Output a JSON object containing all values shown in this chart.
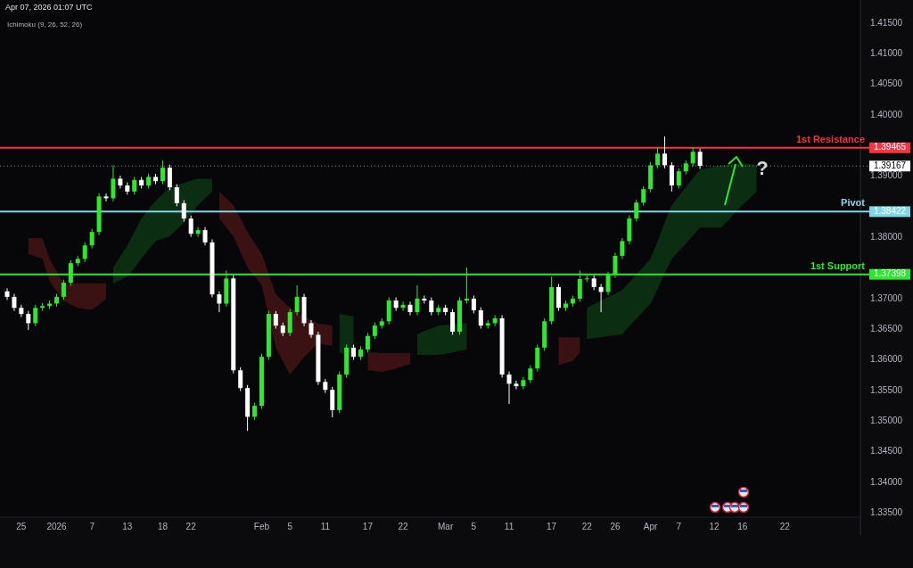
{
  "chart_data": {
    "type": "candlestick",
    "title": "Apr 07, 2026 01:07 UTC",
    "annotations": [
      "Ichimoku (9, 26, 52, 26)",
      "?",
      "1.39465",
      "1.39167",
      "1.38422",
      "1.37398"
    ],
    "categories": [
      null,
      null,
      "25",
      null,
      null,
      null,
      null,
      "2026",
      null,
      null,
      null,
      null,
      "7",
      null,
      null,
      null,
      null,
      "13",
      null,
      null,
      null,
      null,
      "18",
      null,
      null,
      null,
      "22",
      null,
      null,
      null,
      null,
      null,
      null,
      null,
      null,
      null,
      "Feb",
      null,
      null,
      null,
      "5",
      null,
      null,
      null,
      null,
      "11",
      null,
      null,
      null,
      null,
      null,
      "17",
      null,
      null,
      null,
      null,
      "22",
      null,
      null,
      null,
      null,
      null,
      "Mar",
      null,
      null,
      null,
      "5",
      null,
      null,
      null,
      null,
      "11",
      null,
      null,
      null,
      null,
      null,
      "17",
      null,
      null,
      null,
      null,
      "22",
      null,
      null,
      null,
      "26",
      null,
      null,
      null,
      null,
      "Apr",
      null,
      null,
      null,
      "7",
      null,
      null,
      null,
      null,
      "12",
      null,
      null,
      null,
      "16",
      null,
      null,
      null,
      null,
      null,
      "22",
      null,
      null,
      null,
      null,
      null,
      null,
      null,
      null,
      null,
      null
    ],
    "ylim": [
      1.3343,
      1.4188
    ],
    "yticks": [
      {
        "value": 1.415,
        "label": "1.41500"
      },
      {
        "value": 1.41,
        "label": "1.41000"
      },
      {
        "value": 1.405,
        "label": "1.40500"
      },
      {
        "value": 1.4,
        "label": "1.40000"
      },
      {
        "value": 1.39,
        "label": "1.39000"
      },
      {
        "value": 1.38,
        "label": "1.38000"
      },
      {
        "value": 1.37,
        "label": "1.37000"
      },
      {
        "value": 1.365,
        "label": "1.36500"
      },
      {
        "value": 1.36,
        "label": "1.36000"
      },
      {
        "value": 1.355,
        "label": "1.35500"
      },
      {
        "value": 1.35,
        "label": "1.35000"
      },
      {
        "value": 1.345,
        "label": "1.34500"
      },
      {
        "value": 1.34,
        "label": "1.34000"
      },
      {
        "value": 1.335,
        "label": "1.33500"
      }
    ],
    "ohlc": [
      [
        1.3712,
        1.3717,
        1.3698,
        1.3703
      ],
      [
        1.3703,
        1.3708,
        1.368,
        1.3685
      ],
      [
        1.3685,
        1.369,
        1.367,
        1.3675
      ],
      [
        1.3675,
        1.368,
        1.3649,
        1.366
      ],
      [
        1.366,
        1.369,
        1.3655,
        1.3685
      ],
      [
        1.3685,
        1.3693,
        1.368,
        1.3688
      ],
      [
        1.3688,
        1.3697,
        1.3683,
        1.3692
      ],
      [
        1.3692,
        1.3708,
        1.3687,
        1.3703
      ],
      [
        1.3703,
        1.3731,
        1.3698,
        1.3726
      ],
      [
        1.3726,
        1.3763,
        1.3721,
        1.3758
      ],
      [
        1.3758,
        1.377,
        1.3753,
        1.3765
      ],
      [
        1.3765,
        1.3792,
        1.376,
        1.3787
      ],
      [
        1.3787,
        1.3814,
        1.3782,
        1.3809
      ],
      [
        1.3809,
        1.3872,
        1.3804,
        1.3867
      ],
      [
        1.3867,
        1.3872,
        1.3859,
        1.3864
      ],
      [
        1.3864,
        1.3918,
        1.3859,
        1.3896
      ],
      [
        1.3896,
        1.3901,
        1.388,
        1.3885
      ],
      [
        1.3885,
        1.389,
        1.387,
        1.3875
      ],
      [
        1.3875,
        1.3899,
        1.387,
        1.3894
      ],
      [
        1.3894,
        1.3899,
        1.388,
        1.3885
      ],
      [
        1.3885,
        1.3904,
        1.388,
        1.3899
      ],
      [
        1.3899,
        1.3904,
        1.3887,
        1.3892
      ],
      [
        1.3892,
        1.3926,
        1.3887,
        1.3914
      ],
      [
        1.3914,
        1.3919,
        1.3877,
        1.3882
      ],
      [
        1.3882,
        1.3887,
        1.3851,
        1.3856
      ],
      [
        1.3856,
        1.3861,
        1.3826,
        1.3831
      ],
      [
        1.3831,
        1.3836,
        1.3801,
        1.3806
      ],
      [
        1.3806,
        1.3817,
        1.3801,
        1.3812
      ],
      [
        1.3812,
        1.3817,
        1.3787,
        1.3792
      ],
      [
        1.3792,
        1.3797,
        1.3702,
        1.3707
      ],
      [
        1.3707,
        1.3712,
        1.3678,
        1.3692
      ],
      [
        1.3692,
        1.3746,
        1.3687,
        1.3733
      ],
      [
        1.3733,
        1.3738,
        1.3578,
        1.3583
      ],
      [
        1.3583,
        1.3588,
        1.3549,
        1.3554
      ],
      [
        1.3554,
        1.3559,
        1.3484,
        1.3507
      ],
      [
        1.3507,
        1.353,
        1.3502,
        1.3525
      ],
      [
        1.3525,
        1.361,
        1.352,
        1.3605
      ],
      [
        1.3605,
        1.368,
        1.36,
        1.3675
      ],
      [
        1.3675,
        1.368,
        1.3651,
        1.3656
      ],
      [
        1.3656,
        1.3661,
        1.3639,
        1.3644
      ],
      [
        1.3644,
        1.3683,
        1.3639,
        1.3678
      ],
      [
        1.3678,
        1.3722,
        1.3673,
        1.3703
      ],
      [
        1.3703,
        1.3708,
        1.3655,
        1.366
      ],
      [
        1.366,
        1.3665,
        1.3636,
        1.3641
      ],
      [
        1.3641,
        1.3646,
        1.3559,
        1.3564
      ],
      [
        1.3564,
        1.3569,
        1.3546,
        1.3551
      ],
      [
        1.3551,
        1.3556,
        1.3506,
        1.3518
      ],
      [
        1.3518,
        1.3581,
        1.3513,
        1.3576
      ],
      [
        1.3576,
        1.3625,
        1.3571,
        1.362
      ],
      [
        1.362,
        1.3625,
        1.36,
        1.3605
      ],
      [
        1.3605,
        1.3622,
        1.36,
        1.3617
      ],
      [
        1.3617,
        1.3644,
        1.3612,
        1.3639
      ],
      [
        1.3639,
        1.3661,
        1.3634,
        1.3656
      ],
      [
        1.3656,
        1.3668,
        1.3651,
        1.3663
      ],
      [
        1.3663,
        1.3702,
        1.3658,
        1.3697
      ],
      [
        1.3697,
        1.3702,
        1.368,
        1.3685
      ],
      [
        1.3685,
        1.3695,
        1.368,
        1.369
      ],
      [
        1.369,
        1.3695,
        1.3673,
        1.3678
      ],
      [
        1.3678,
        1.3722,
        1.3673,
        1.37
      ],
      [
        1.37,
        1.3705,
        1.3692,
        1.3697
      ],
      [
        1.3697,
        1.3702,
        1.3673,
        1.3678
      ],
      [
        1.3678,
        1.369,
        1.3673,
        1.3685
      ],
      [
        1.3685,
        1.369,
        1.3673,
        1.3678
      ],
      [
        1.3678,
        1.3683,
        1.3641,
        1.3646
      ],
      [
        1.3646,
        1.3702,
        1.3641,
        1.3697
      ],
      [
        1.3697,
        1.3751,
        1.3692,
        1.37
      ],
      [
        1.37,
        1.3705,
        1.3676,
        1.3681
      ],
      [
        1.3681,
        1.3686,
        1.3651,
        1.3656
      ],
      [
        1.3656,
        1.3665,
        1.3651,
        1.366
      ],
      [
        1.366,
        1.3673,
        1.3655,
        1.3668
      ],
      [
        1.3668,
        1.3673,
        1.3571,
        1.3576
      ],
      [
        1.3576,
        1.3581,
        1.3528,
        1.3561
      ],
      [
        1.3561,
        1.3566,
        1.3552,
        1.3557
      ],
      [
        1.3557,
        1.3572,
        1.3552,
        1.3567
      ],
      [
        1.3567,
        1.3591,
        1.3562,
        1.3586
      ],
      [
        1.3586,
        1.3625,
        1.3581,
        1.362
      ],
      [
        1.362,
        1.3668,
        1.3615,
        1.3663
      ],
      [
        1.3663,
        1.3736,
        1.3658,
        1.3719
      ],
      [
        1.3719,
        1.3724,
        1.368,
        1.3685
      ],
      [
        1.3685,
        1.3697,
        1.368,
        1.3692
      ],
      [
        1.3692,
        1.3705,
        1.3687,
        1.37
      ],
      [
        1.37,
        1.3746,
        1.3695,
        1.3732
      ],
      [
        1.3732,
        1.3738,
        1.3727,
        1.3733
      ],
      [
        1.3733,
        1.3738,
        1.3714,
        1.3719
      ],
      [
        1.3719,
        1.3724,
        1.3678,
        1.3711
      ],
      [
        1.3711,
        1.3744,
        1.3706,
        1.3739
      ],
      [
        1.3739,
        1.3775,
        1.3734,
        1.377
      ],
      [
        1.377,
        1.3799,
        1.3765,
        1.3794
      ],
      [
        1.3794,
        1.3836,
        1.3789,
        1.3831
      ],
      [
        1.3831,
        1.3862,
        1.3826,
        1.3857
      ],
      [
        1.3857,
        1.3884,
        1.3852,
        1.3879
      ],
      [
        1.3879,
        1.3923,
        1.3874,
        1.3918
      ],
      [
        1.3918,
        1.3946,
        1.3913,
        1.3937
      ],
      [
        1.3937,
        1.3965,
        1.3913,
        1.3918
      ],
      [
        1.3918,
        1.3923,
        1.3875,
        1.3885
      ],
      [
        1.3885,
        1.3913,
        1.388,
        1.3908
      ],
      [
        1.3908,
        1.3926,
        1.3903,
        1.3921
      ],
      [
        1.3921,
        1.3947,
        1.3916,
        1.394
      ],
      [
        1.394,
        1.3945,
        1.3912,
        1.3917
      ],
      null,
      null,
      null,
      null,
      null,
      null,
      null,
      null,
      null,
      null,
      null,
      null,
      null,
      null,
      null,
      null,
      null,
      null,
      null,
      null,
      null,
      null
    ],
    "colors": [
      "#ffffff",
      "#ffffff",
      "#ffffff",
      "#ffffff",
      "#2ee82e",
      "#2ee82e",
      "#2ee82e",
      "#2ee82e",
      "#2ee82e",
      "#2ee82e",
      "#2ee82e",
      "#2ee82e",
      "#2ee82e",
      "#2ee82e",
      "#ffffff",
      "#2ee82e",
      "#ffffff",
      "#ffffff",
      "#2ee82e",
      "#ffffff",
      "#2ee82e",
      "#ffffff",
      "#2ee82e",
      "#ffffff",
      "#ffffff",
      "#ffffff",
      "#ffffff",
      "#2ee82e",
      "#ffffff",
      "#ffffff",
      "#ffffff",
      "#2ee82e",
      "#ffffff",
      "#ffffff",
      "#ffffff",
      "#2ee82e",
      "#2ee82e",
      "#2ee82e",
      "#ffffff",
      "#ffffff",
      "#2ee82e",
      "#2ee82e",
      "#ffffff",
      "#ffffff",
      "#ffffff",
      "#ffffff",
      "#ffffff",
      "#2ee82e",
      "#2ee82e",
      "#ffffff",
      "#2ee82e",
      "#2ee82e",
      "#2ee82e",
      "#2ee82e",
      "#2ee82e",
      "#ffffff",
      "#2ee82e",
      "#ffffff",
      "#2ee82e",
      "#ffffff",
      "#ffffff",
      "#2ee82e",
      "#ffffff",
      "#ffffff",
      "#2ee82e",
      "#2ee82e",
      "#ffffff",
      "#ffffff",
      "#2ee82e",
      "#2ee82e",
      "#ffffff",
      "#ffffff",
      "#ffffff",
      "#2ee82e",
      "#2ee82e",
      "#2ee82e",
      "#2ee82e",
      "#2ee82e",
      "#ffffff",
      "#2ee82e",
      "#2ee82e",
      "#2ee82e",
      "#2ee82e",
      "#ffffff",
      "#ffffff",
      "#2ee82e",
      "#2ee82e",
      "#2ee82e",
      "#2ee82e",
      "#2ee82e",
      "#2ee82e",
      "#2ee82e",
      "#2ee82e",
      "#ffffff",
      "#ffffff",
      "#2ee82e",
      "#2ee82e",
      "#2ee82e",
      "#ffffff",
      null,
      null,
      null,
      null,
      null,
      null,
      null,
      null,
      null,
      null,
      null,
      null,
      null,
      null,
      null,
      null,
      null,
      null,
      null,
      null,
      null,
      null
    ],
    "series": [
      {
        "type": "line",
        "color": "#3a1214",
        "values": [
          null,
          null,
          null,
          null,
          null,
          null,
          null,
          null,
          null,
          null,
          null,
          null,
          null,
          null,
          null,
          null,
          null,
          null,
          null,
          null,
          null,
          null,
          null,
          null,
          null,
          null,
          null,
          null,
          null,
          null,
          null,
          null,
          null,
          null,
          null,
          null,
          null,
          null,
          null,
          null,
          null,
          null,
          null,
          null,
          null,
          null,
          null,
          null,
          null,
          null,
          null,
          null,
          null,
          null,
          null,
          null,
          null,
          null,
          null,
          null,
          null,
          null,
          null,
          null,
          null,
          null,
          null,
          null,
          null,
          null,
          null,
          null,
          null,
          null,
          null,
          null,
          null,
          null,
          null,
          null,
          null,
          null,
          null,
          null,
          null,
          null,
          null,
          null,
          null,
          null,
          null,
          null,
          null,
          null,
          null,
          null,
          null,
          null,
          null,
          null,
          null,
          null,
          null,
          null,
          null,
          null,
          null,
          null,
          null,
          null,
          null,
          null,
          null,
          null,
          null,
          null,
          null,
          null,
          null,
          null,
          null
        ],
        "upper": [
          null,
          null,
          null,
          1.3799,
          1.3799,
          1.3799,
          1.3765,
          1.3745,
          1.3725,
          1.3725,
          1.3725,
          1.3725,
          1.3725,
          1.3725,
          1.3725,
          null,
          null,
          null,
          null,
          null,
          null,
          null,
          null,
          null,
          null,
          null,
          null,
          null,
          null,
          null,
          1.3875,
          1.3864,
          1.3853,
          1.3831,
          1.3809,
          1.3791,
          1.3773,
          1.374,
          1.3707,
          1.3696,
          1.3685,
          1.3678,
          1.3671,
          1.3665,
          1.3659,
          1.3658,
          1.3656,
          null,
          null,
          null,
          null,
          1.3612,
          1.3612,
          1.3611,
          1.3611,
          1.3611,
          1.3611,
          1.3611,
          null,
          null,
          null,
          null,
          null,
          null,
          null,
          null,
          null,
          null,
          null,
          null,
          null,
          null,
          null,
          null,
          null,
          null,
          null,
          null,
          1.3637,
          1.3637,
          1.3637,
          1.3637,
          null,
          null,
          null,
          null,
          null,
          null,
          null,
          null,
          null,
          null,
          null,
          null,
          null,
          null,
          null,
          null,
          null,
          null,
          null,
          null,
          null,
          null,
          null,
          null,
          null,
          null,
          null,
          null,
          null,
          null,
          null,
          null,
          null,
          null,
          null,
          null,
          null,
          null,
          null
        ],
        "lower": [
          null,
          null,
          null,
          1.3773,
          1.3769,
          1.3765,
          1.3729,
          1.3712,
          1.3697,
          1.369,
          1.3685,
          1.3683,
          1.3682,
          1.369,
          1.37,
          null,
          null,
          null,
          null,
          null,
          null,
          null,
          null,
          null,
          null,
          null,
          null,
          null,
          null,
          null,
          1.3831,
          1.3816,
          1.3802,
          1.3776,
          1.3751,
          1.3736,
          1.3722,
          1.3671,
          1.362,
          1.3598,
          1.3576,
          1.359,
          1.3605,
          1.3616,
          1.3627,
          1.3625,
          1.3623,
          null,
          null,
          null,
          null,
          1.3583,
          1.3582,
          1.358,
          1.3583,
          1.3586,
          1.359,
          1.3593,
          null,
          null,
          null,
          null,
          null,
          null,
          null,
          null,
          null,
          null,
          null,
          null,
          null,
          null,
          null,
          null,
          null,
          null,
          null,
          null,
          1.3591,
          1.3595,
          1.3598,
          1.3612,
          null,
          null,
          null,
          null,
          null,
          null,
          null,
          null,
          null,
          null,
          null,
          null,
          null,
          null,
          null,
          null,
          null,
          null,
          null,
          null,
          null,
          null,
          null,
          null,
          null,
          null,
          null,
          null,
          null,
          null,
          null,
          null,
          null,
          null,
          null,
          null,
          null,
          null,
          null
        ]
      },
      {
        "type": "line",
        "color": "#0b2e12",
        "values": [
          null,
          null,
          null,
          null,
          null,
          null,
          null,
          null,
          null,
          null,
          null,
          null,
          null,
          null,
          null,
          null,
          null,
          null,
          null,
          null,
          null,
          null,
          null,
          null,
          null,
          null,
          null,
          null,
          null,
          null,
          null,
          null,
          null,
          null,
          null,
          null,
          null,
          null,
          null,
          null,
          null,
          null,
          null,
          null,
          null,
          null,
          null,
          null,
          null,
          null,
          null,
          null,
          null,
          null,
          null,
          null,
          null,
          null,
          null,
          null,
          null,
          null,
          null,
          null,
          null,
          null,
          null,
          null,
          null,
          null,
          null,
          null,
          null,
          null,
          null,
          null,
          null,
          null,
          null,
          null,
          null,
          null,
          null,
          null,
          null,
          null,
          null,
          null,
          null,
          null,
          null,
          null,
          null,
          null,
          null,
          null,
          null,
          null,
          null,
          null,
          null,
          null,
          null,
          null,
          null,
          null,
          null,
          null,
          null,
          null,
          null,
          null,
          null,
          null,
          null,
          null,
          null,
          null,
          null,
          null,
          null
        ],
        "upper": [
          null,
          null,
          null,
          null,
          null,
          null,
          null,
          null,
          null,
          null,
          null,
          null,
          null,
          null,
          null,
          1.3751,
          1.3769,
          1.3787,
          1.3809,
          1.3831,
          1.3846,
          1.386,
          1.3871,
          1.3882,
          1.3886,
          1.3889,
          1.3893,
          1.3896,
          1.3896,
          1.3896,
          null,
          null,
          null,
          null,
          null,
          null,
          null,
          null,
          null,
          null,
          null,
          null,
          null,
          null,
          null,
          null,
          null,
          1.3675,
          1.3673,
          1.3671,
          null,
          null,
          null,
          null,
          null,
          null,
          null,
          null,
          1.3642,
          1.3647,
          1.3651,
          1.3656,
          1.3657,
          1.3658,
          1.3659,
          1.366,
          null,
          null,
          null,
          null,
          null,
          null,
          null,
          null,
          null,
          null,
          null,
          null,
          null,
          null,
          null,
          null,
          1.3685,
          1.3691,
          1.3697,
          1.3703,
          1.3708,
          1.3714,
          1.3727,
          1.374,
          1.3752,
          1.3765,
          1.3794,
          1.3824,
          1.3853,
          1.3868,
          1.3882,
          1.3897,
          1.3911,
          1.3913,
          1.3916,
          1.3918,
          1.3919,
          1.392,
          1.3921,
          1.392,
          1.3918,
          null,
          null,
          null,
          null,
          null,
          null,
          null,
          null,
          null,
          null,
          null,
          null,
          null,
          null
        ],
        "lower": [
          null,
          null,
          null,
          null,
          null,
          null,
          null,
          null,
          null,
          null,
          null,
          null,
          null,
          null,
          null,
          1.3725,
          1.373,
          1.3736,
          1.375,
          1.3765,
          1.378,
          1.3794,
          1.3798,
          1.3802,
          1.3813,
          1.3824,
          1.3838,
          1.3853,
          1.3864,
          1.3875,
          null,
          null,
          null,
          null,
          null,
          null,
          null,
          null,
          null,
          null,
          null,
          null,
          null,
          null,
          null,
          null,
          null,
          1.3612,
          1.3608,
          1.3605,
          null,
          null,
          null,
          null,
          null,
          null,
          null,
          null,
          1.3608,
          1.3608,
          1.3608,
          1.3608,
          1.361,
          1.3612,
          1.3615,
          1.3617,
          null,
          null,
          null,
          null,
          null,
          null,
          null,
          null,
          null,
          null,
          null,
          null,
          null,
          null,
          null,
          null,
          1.3634,
          1.3636,
          1.3637,
          1.3639,
          1.364,
          1.3642,
          1.3655,
          1.3667,
          1.368,
          1.3692,
          1.3716,
          1.3741,
          1.3765,
          1.3778,
          1.379,
          1.3803,
          1.3816,
          1.3816,
          1.3816,
          1.3816,
          1.3828,
          1.3841,
          1.3853,
          1.3864,
          1.3875,
          null,
          null,
          null,
          null,
          null,
          null,
          null,
          null,
          null,
          null,
          null,
          null,
          null,
          null
        ]
      }
    ],
    "ref_lines": [
      {
        "axis": "y",
        "value": 1.39465,
        "label": "1st Resistance",
        "color": "#f23645"
      },
      {
        "axis": "y",
        "value": 1.39167,
        "label": null,
        "color": "#ffffff",
        "line_style": "dotted"
      },
      {
        "axis": "y",
        "value": 1.38422,
        "label": "Pivot",
        "color": "#7fd8e8"
      },
      {
        "axis": "y",
        "value": 1.37398,
        "label": "1st Support",
        "color": "#2ee82e"
      }
    ]
  }
}
